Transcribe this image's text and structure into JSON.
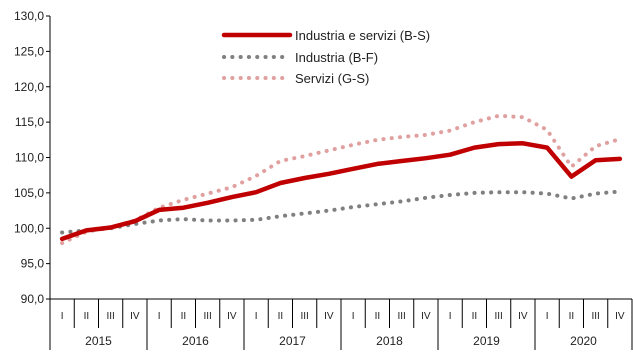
{
  "chart_data": {
    "type": "line",
    "ylim": [
      90,
      130
    ],
    "yticks": [
      "90,0",
      "95,0",
      "100,0",
      "105,0",
      "110,0",
      "115,0",
      "120,0",
      "125,0",
      "130,0"
    ],
    "ytick_values": [
      90,
      95,
      100,
      105,
      110,
      115,
      120,
      125,
      130
    ],
    "quarter_labels": [
      "I",
      "II",
      "III",
      "IV"
    ],
    "years": [
      "2015",
      "2016",
      "2017",
      "2018",
      "2019",
      "2020"
    ],
    "legend_position": "top-center",
    "grid": false,
    "series": [
      {
        "name": "Industria e servizi (B-S)",
        "color": "#c00000",
        "style": "solid",
        "values": [
          98.5,
          99.7,
          100.1,
          101.0,
          102.6,
          102.9,
          103.6,
          104.4,
          105.1,
          106.4,
          107.1,
          107.7,
          108.4,
          109.1,
          109.5,
          109.9,
          110.4,
          111.4,
          111.9,
          112.0,
          111.4,
          107.3,
          109.6,
          109.8
        ]
      },
      {
        "name": "Industria (B-F)",
        "color": "#808080",
        "style": "dotted",
        "values": [
          99.4,
          99.7,
          100.0,
          100.6,
          101.1,
          101.3,
          101.1,
          101.1,
          101.2,
          101.7,
          102.1,
          102.5,
          103.0,
          103.4,
          103.8,
          104.3,
          104.7,
          105.0,
          105.1,
          105.1,
          104.9,
          104.2,
          104.9,
          105.2
        ]
      },
      {
        "name": "Servizi (G-S)",
        "color": "#e0a0a0",
        "style": "dotted",
        "values": [
          97.9,
          99.5,
          100.1,
          101.1,
          102.9,
          104.0,
          104.9,
          105.8,
          107.4,
          109.5,
          110.2,
          111.0,
          111.8,
          112.5,
          112.9,
          113.2,
          113.8,
          115.0,
          115.9,
          115.7,
          113.9,
          108.7,
          111.6,
          112.6
        ]
      }
    ]
  }
}
